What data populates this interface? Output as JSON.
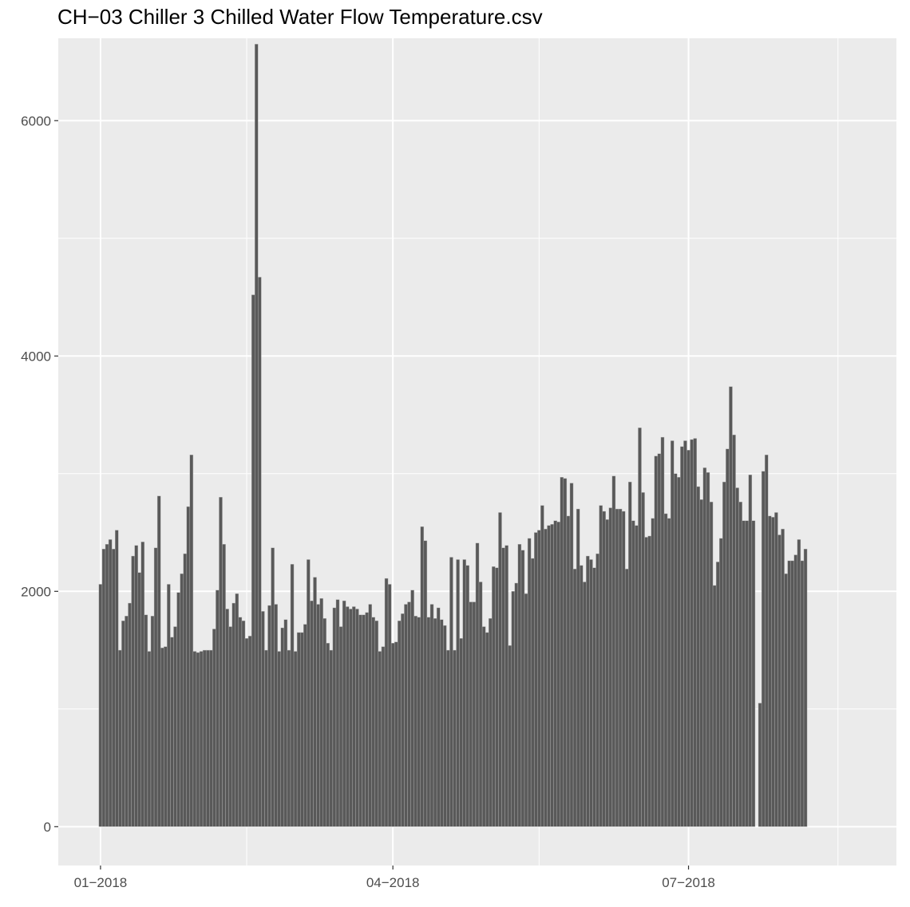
{
  "chart_data": {
    "type": "bar",
    "title": "CH−03 Chiller 3 Chilled Water Flow Temperature.csv",
    "xlabel": "",
    "ylabel": "",
    "x_start": "2018-01-01",
    "x_end": "2018-08-23",
    "xlim": [
      "2017-12-19",
      "2018-09-03"
    ],
    "ylim": [
      -330,
      6700
    ],
    "x_ticks": [
      {
        "date": "2018-01-01",
        "label": "01−2018"
      },
      {
        "date": "2018-04-01",
        "label": "04−2018"
      },
      {
        "date": "2018-07-01",
        "label": "07−2018"
      }
    ],
    "x_minor_ticks": [
      "2018-02-15",
      "2018-05-16",
      "2018-08-16"
    ],
    "y_ticks": [
      {
        "value": 0,
        "label": "0"
      },
      {
        "value": 2000,
        "label": "2000"
      },
      {
        "value": 4000,
        "label": "4000"
      },
      {
        "value": 6000,
        "label": "6000"
      }
    ],
    "y_minor_ticks": [
      1000,
      3000,
      5000
    ],
    "grid": true,
    "colors": {
      "panel": "#ebebeb",
      "grid": "#ffffff",
      "bar_fill": "#595959",
      "bar_edge": "#b3b3b3"
    },
    "values": [
      2060,
      2360,
      2400,
      2440,
      2360,
      2520,
      1500,
      1750,
      1790,
      1900,
      2300,
      2390,
      2160,
      2420,
      1800,
      1490,
      1790,
      2370,
      2810,
      1520,
      1530,
      2060,
      1610,
      1700,
      1990,
      2150,
      2320,
      2720,
      3160,
      1490,
      1480,
      1490,
      1500,
      1500,
      1500,
      1680,
      2010,
      2800,
      2400,
      1850,
      1700,
      1900,
      1980,
      1780,
      1750,
      1600,
      1620,
      4520,
      6650,
      4670,
      1830,
      1500,
      1880,
      2370,
      1890,
      1490,
      1690,
      1760,
      1500,
      2230,
      1490,
      1650,
      1650,
      1720,
      2270,
      1920,
      2120,
      1890,
      1940,
      1770,
      1560,
      1500,
      1860,
      1930,
      1700,
      1920,
      1870,
      1850,
      1870,
      1850,
      1800,
      1800,
      1820,
      1890,
      1780,
      1750,
      1490,
      1530,
      2110,
      2060,
      1560,
      1570,
      1750,
      1810,
      1890,
      1910,
      2010,
      1790,
      1780,
      2550,
      2430,
      1780,
      1890,
      1770,
      1860,
      1760,
      1710,
      1500,
      2290,
      1500,
      2270,
      1600,
      2270,
      2220,
      1910,
      1910,
      2410,
      2080,
      1700,
      1650,
      1770,
      2210,
      2200,
      2670,
      2370,
      2390,
      1540,
      2000,
      2070,
      2400,
      2350,
      1980,
      2450,
      2280,
      2500,
      2520,
      2730,
      2530,
      2560,
      2570,
      2600,
      2590,
      2970,
      2960,
      2640,
      2920,
      2190,
      2700,
      2220,
      2080,
      2300,
      2270,
      2200,
      2320,
      2730,
      2680,
      2610,
      2710,
      2980,
      2700,
      2700,
      2680,
      2190,
      2930,
      2600,
      2560,
      3390,
      2840,
      2460,
      2470,
      2620,
      3150,
      3170,
      3310,
      2660,
      2620,
      3280,
      3000,
      2970,
      3230,
      3280,
      3200,
      3290,
      3300,
      2890,
      2780,
      3050,
      3010,
      2760,
      2050,
      2250,
      2450,
      2930,
      3210,
      3740,
      3330,
      2880,
      2760,
      2600,
      2600,
      2990,
      2600,
      0,
      1050,
      3020,
      3160,
      2640,
      2630,
      2670,
      2480,
      2530,
      2150,
      2260,
      2260,
      2310,
      2440,
      2260,
      2360
    ]
  }
}
